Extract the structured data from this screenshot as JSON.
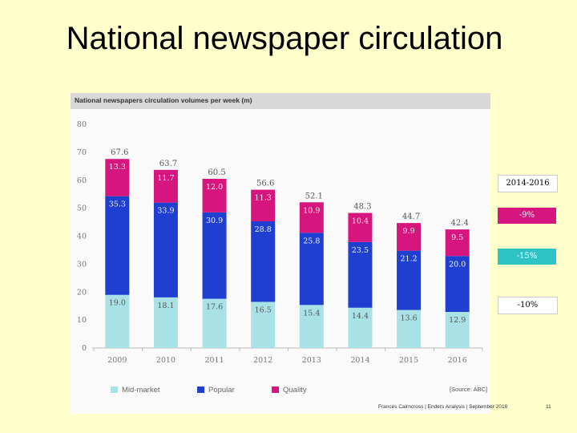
{
  "slide": {
    "title": "National newspaper circulation",
    "footer": "Frances Cairncross | Enders Analysis | September 2018",
    "page_number": "11"
  },
  "source_note": "[Source: ABC]",
  "side_panel": {
    "header": "2014-2016",
    "quality_change": "-9%",
    "popular_change": "-15%",
    "midmarket_change": "-10%"
  },
  "colors": {
    "mid_market": "#a9e2e6",
    "popular": "#1f3fd0",
    "quality": "#d6157f",
    "background": "#ffffcc"
  },
  "chart_data": {
    "type": "bar",
    "stacked": true,
    "title": "National newspapers circulation volumes per week (m)",
    "xlabel": "",
    "ylabel": "",
    "categories": [
      "2009",
      "2010",
      "2011",
      "2012",
      "2013",
      "2014",
      "2015",
      "2016"
    ],
    "series": [
      {
        "name": "Mid-market",
        "values": [
          19.0,
          18.1,
          17.6,
          16.5,
          15.4,
          14.4,
          13.6,
          12.9
        ]
      },
      {
        "name": "Popular",
        "values": [
          35.3,
          33.9,
          30.9,
          28.8,
          25.8,
          23.5,
          21.2,
          20.0
        ]
      },
      {
        "name": "Quality",
        "values": [
          13.3,
          11.7,
          12.0,
          11.3,
          10.9,
          10.4,
          9.9,
          9.5
        ]
      }
    ],
    "totals": [
      67.6,
      63.7,
      60.5,
      56.6,
      52.1,
      48.3,
      44.7,
      42.4
    ],
    "yticks": [
      0,
      10,
      20,
      30,
      40,
      50,
      60,
      70,
      80
    ],
    "ylim": [
      0,
      80
    ],
    "grid": false,
    "legend": "bottom"
  }
}
